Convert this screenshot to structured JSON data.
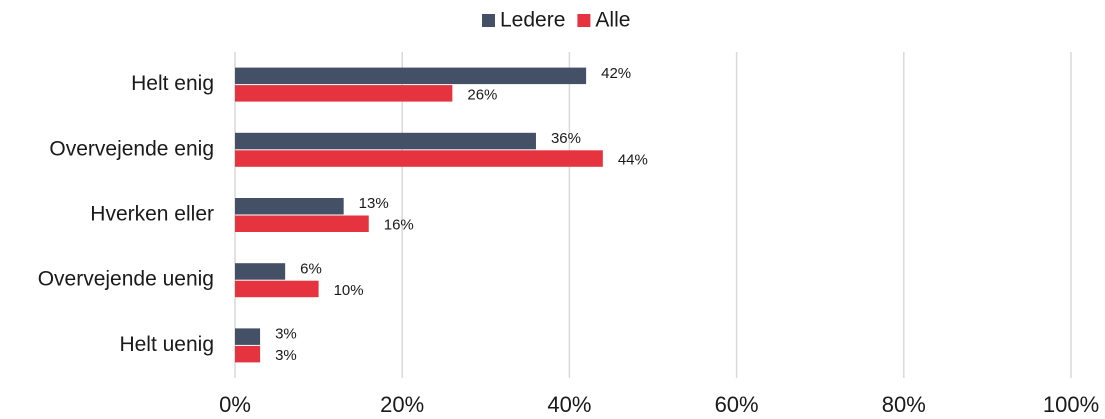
{
  "chart_data": {
    "type": "barh",
    "categories": [
      "Helt enig",
      "Overvejende enig",
      "Hverken eller",
      "Overvejende uenig",
      "Helt uenig"
    ],
    "series": [
      {
        "name": "Ledere",
        "color": "#435066",
        "values": [
          42,
          36,
          13,
          6,
          3
        ],
        "value_labels": [
          "42%",
          "36%",
          "13%",
          "6%",
          "3%"
        ]
      },
      {
        "name": "Alle",
        "color": "#e5333f",
        "values": [
          26,
          44,
          16,
          10,
          3
        ],
        "value_labels": [
          "26%",
          "44%",
          "16%",
          "10%",
          "3%"
        ]
      }
    ],
    "xlim": [
      0,
      100
    ],
    "xticks": [
      {
        "value": 0,
        "label": "0%"
      },
      {
        "value": 20,
        "label": "20%"
      },
      {
        "value": 40,
        "label": "40%"
      },
      {
        "value": 60,
        "label": "60%"
      },
      {
        "value": 80,
        "label": "80%"
      },
      {
        "value": 100,
        "label": "100%"
      }
    ],
    "grid": true,
    "legend": "top"
  }
}
